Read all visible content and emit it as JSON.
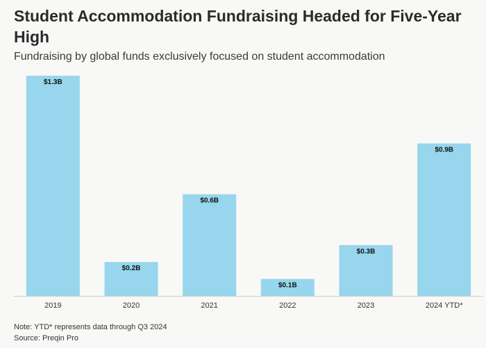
{
  "title": "Student Accommodation Fundraising Headed for Five-Year High",
  "subtitle": "Fundraising by global funds exclusively focused on student accommodation",
  "note": "Note: YTD* represents data through Q3 2024",
  "source": "Source: Preqin Pro",
  "colors": {
    "bar": "#97d6ec",
    "background": "#f8f8f6",
    "axis": "#cfcfcf"
  },
  "chart_data": {
    "type": "bar",
    "categories": [
      "2019",
      "2020",
      "2021",
      "2022",
      "2023",
      "2024 YTD*"
    ],
    "values": [
      1.3,
      0.2,
      0.6,
      0.1,
      0.3,
      0.9
    ],
    "data_labels": [
      "$1.3B",
      "$0.2B",
      "$0.6B",
      "$0.1B",
      "$0.3B",
      "$0.9B"
    ],
    "title": "Student Accommodation Fundraising Headed for Five-Year High",
    "subtitle": "Fundraising by global funds exclusively focused on student accommodation",
    "ylim": [
      0,
      1.3
    ],
    "grid": false,
    "legend": "none"
  }
}
